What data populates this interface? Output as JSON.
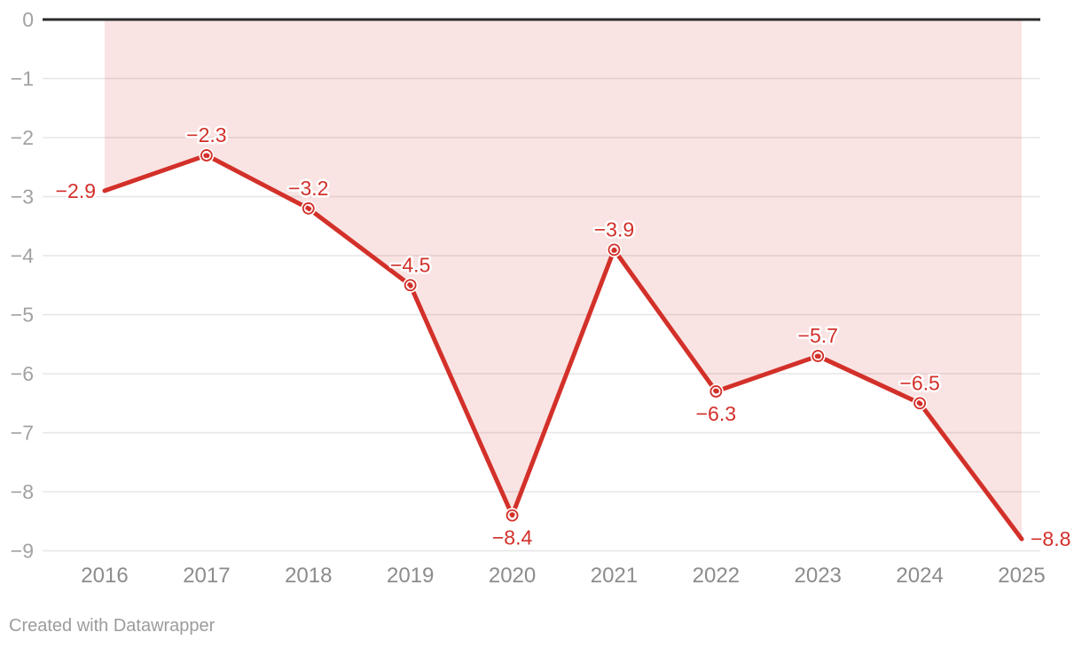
{
  "chart_data": {
    "type": "line",
    "title": "",
    "xlabel": "",
    "ylabel": "",
    "categories": [
      "2016",
      "2017",
      "2018",
      "2019",
      "2020",
      "2021",
      "2022",
      "2023",
      "2024",
      "2025"
    ],
    "values": [
      -2.9,
      -2.3,
      -3.2,
      -4.5,
      -8.4,
      -3.9,
      -6.3,
      -5.7,
      -6.5,
      -8.8
    ],
    "point_labels": [
      "−2.9",
      "−2.3",
      "−3.2",
      "−4.5",
      "−8.4",
      "−3.9",
      "−6.3",
      "−5.7",
      "−6.5",
      "−8.8"
    ],
    "label_placement": [
      "left",
      "top",
      "top",
      "top",
      "bottom",
      "top",
      "bottom",
      "top",
      "top",
      "right"
    ],
    "show_marker": [
      false,
      true,
      true,
      true,
      true,
      true,
      true,
      true,
      true,
      false
    ],
    "ylim": [
      -9,
      0
    ],
    "yticks": {
      "values": [
        0,
        -1,
        -2,
        -3,
        -4,
        -5,
        -6,
        -7,
        -8,
        -9
      ],
      "labels": [
        "0",
        "−1",
        "−2",
        "−3",
        "−4",
        "−5",
        "−6",
        "−7",
        "−8",
        "−9"
      ]
    },
    "grid": true,
    "area_fill_to_zero": true,
    "legend": "none",
    "colors": {
      "line": "#d3302a",
      "area": "#d3302a",
      "area_opacity": "0.13",
      "zero_line": "#2b2b2b",
      "grid_line": "#e6e6e6",
      "y_tick_text": "#a2a2a2",
      "x_tick_text": "#8c8c8c",
      "marker_halo": "#ffffff"
    }
  },
  "footer": {
    "text": "Created with Datawrapper"
  }
}
